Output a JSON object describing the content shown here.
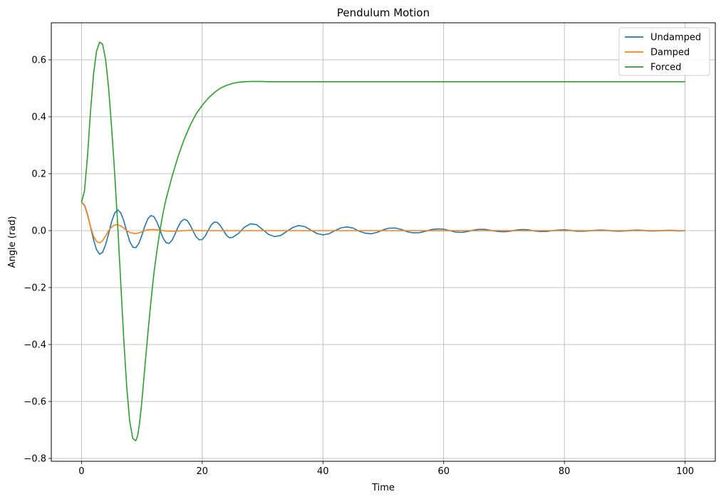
{
  "chart_data": {
    "type": "line",
    "title": "Pendulum Motion",
    "xlabel": "Time",
    "ylabel": "Angle (rad)",
    "xlim": [
      -5,
      105
    ],
    "ylim": [
      -0.81,
      0.73
    ],
    "xticks": [
      0,
      20,
      40,
      60,
      80,
      100
    ],
    "yticks": [
      -0.8,
      -0.6,
      -0.4,
      -0.2,
      0.0,
      0.2,
      0.4,
      0.6
    ],
    "xtick_labels": [
      "0",
      "20",
      "40",
      "60",
      "80",
      "100"
    ],
    "ytick_labels": [
      "−0.8",
      "−0.6",
      "−0.4",
      "−0.2",
      "0.0",
      "0.2",
      "0.4",
      "0.6"
    ],
    "grid": true,
    "legend_position": "top-right",
    "series": [
      {
        "name": "Undamped",
        "color": "#1f77b4",
        "x": [
          0,
          0.5,
          1.0,
          1.5,
          2.0,
          2.5,
          3.0,
          3.5,
          4.0,
          4.5,
          5.0,
          5.5,
          6.0,
          6.5,
          7.0,
          7.5,
          8.0,
          8.5,
          9.0,
          9.5,
          10.0,
          10.5,
          11.0,
          11.5,
          12.0,
          12.5,
          13.0,
          13.5,
          14.0,
          14.5,
          15.0,
          15.5,
          16.0,
          16.5,
          17.0,
          17.5,
          18.0,
          18.5,
          19.0,
          19.5,
          20.0,
          20.5,
          21.0,
          21.5,
          22.0,
          22.5,
          23.0,
          23.5,
          24.0,
          24.5,
          25.0,
          26.0,
          27.0,
          28.0,
          29.0,
          30.0,
          31.0,
          32.0,
          33.0,
          34.0,
          35.0,
          36.0,
          37.0,
          38.0,
          39.0,
          40.0,
          41.0,
          42.0,
          43.0,
          44.0,
          45.0,
          46.0,
          47.0,
          48.0,
          49.0,
          50.0,
          51.0,
          52.0,
          53.0,
          54.0,
          55.0,
          56.0,
          57.0,
          58.0,
          59.0,
          60.0,
          61.0,
          62.0,
          63.0,
          64.0,
          65.0,
          66.0,
          67.0,
          68.0,
          69.0,
          70.0,
          71.0,
          72.0,
          73.0,
          74.0,
          75.0,
          76.0,
          77.0,
          78.0,
          79.0,
          80.0,
          81.0,
          82.0,
          83.0,
          84.0,
          85.0,
          86.0,
          87.0,
          88.0,
          89.0,
          90.0,
          91.0,
          92.0,
          93.0,
          94.0,
          95.0,
          96.0,
          97.0,
          98.0,
          99.0,
          100.0
        ],
        "y": [
          0.1,
          0.09,
          0.058,
          0.013,
          -0.032,
          -0.067,
          -0.083,
          -0.076,
          -0.049,
          -0.01,
          0.032,
          0.062,
          0.073,
          0.063,
          0.035,
          -0.003,
          -0.038,
          -0.058,
          -0.06,
          -0.045,
          -0.017,
          0.016,
          0.042,
          0.053,
          0.049,
          0.03,
          0.003,
          -0.025,
          -0.042,
          -0.045,
          -0.034,
          -0.012,
          0.013,
          0.032,
          0.04,
          0.036,
          0.02,
          -0.002,
          -0.022,
          -0.032,
          -0.031,
          -0.019,
          0.001,
          0.02,
          0.03,
          0.029,
          0.018,
          0.001,
          -0.016,
          -0.025,
          -0.024,
          -0.01,
          0.012,
          0.024,
          0.021,
          0.004,
          -0.013,
          -0.021,
          -0.017,
          -0.003,
          0.011,
          0.018,
          0.014,
          0.002,
          -0.01,
          -0.015,
          -0.011,
          0.0,
          0.01,
          0.013,
          0.009,
          -0.002,
          -0.009,
          -0.011,
          -0.006,
          0.003,
          0.009,
          0.009,
          0.004,
          -0.004,
          -0.008,
          -0.007,
          -0.002,
          0.004,
          0.006,
          0.005,
          0.0,
          -0.005,
          -0.006,
          -0.003,
          0.002,
          0.005,
          0.004,
          0.0,
          -0.003,
          -0.004,
          -0.002,
          0.002,
          0.004,
          0.003,
          -0.001,
          -0.003,
          -0.003,
          0.0,
          0.002,
          0.003,
          0.001,
          -0.002,
          -0.002,
          -0.001,
          0.001,
          0.002,
          0.001,
          -0.001,
          -0.002,
          -0.001,
          0.001,
          0.002,
          0.001,
          -0.001,
          -0.001,
          0.0,
          0.001,
          0.001,
          -0.001,
          0.0
        ]
      },
      {
        "name": "Damped",
        "color": "#ff7f0e",
        "x": [
          0,
          0.5,
          1.0,
          1.5,
          2.0,
          2.5,
          3.0,
          3.5,
          4.0,
          4.5,
          5.0,
          5.5,
          6.0,
          6.5,
          7.0,
          7.5,
          8.0,
          8.5,
          9.0,
          9.5,
          10.0,
          10.5,
          11.0,
          11.5,
          12.0,
          12.5,
          13.0,
          13.5,
          14.0,
          15.0,
          16.0,
          17.0,
          18.0,
          20.0,
          25.0,
          30.0,
          40.0,
          50.0,
          60.0,
          70.0,
          80.0,
          90.0,
          100.0
        ],
        "y": [
          0.1,
          0.088,
          0.055,
          0.014,
          -0.02,
          -0.038,
          -0.043,
          -0.035,
          -0.018,
          0.0,
          0.013,
          0.02,
          0.021,
          0.017,
          0.009,
          0.0,
          -0.006,
          -0.009,
          -0.01,
          -0.008,
          -0.004,
          0.0,
          0.003,
          0.004,
          0.004,
          0.003,
          0.002,
          0.0,
          -0.001,
          -0.002,
          -0.001,
          0.0,
          0.001,
          0.0,
          0.0,
          0.0,
          0.0,
          0.0,
          0.0,
          0.0,
          0.0,
          0.0,
          0.0
        ]
      },
      {
        "name": "Forced",
        "color": "#2ca02c",
        "x": [
          0,
          0.5,
          1.0,
          1.5,
          2.0,
          2.5,
          3.0,
          3.5,
          4.0,
          4.5,
          5.0,
          5.5,
          6.0,
          6.5,
          7.0,
          7.5,
          8.0,
          8.5,
          9.0,
          9.3,
          9.6,
          10.0,
          10.5,
          11.0,
          11.5,
          12.0,
          12.5,
          13.0,
          13.5,
          14.0,
          15.0,
          16.0,
          17.0,
          18.0,
          19.0,
          20.0,
          21.0,
          22.0,
          23.0,
          24.0,
          25.0,
          26.0,
          27.0,
          28.0,
          29.0,
          30.0,
          31.0,
          32.0,
          34.0,
          36.0,
          40.0,
          50.0,
          60.0,
          70.0,
          80.0,
          90.0,
          100.0
        ],
        "y": [
          0.1,
          0.14,
          0.26,
          0.42,
          0.55,
          0.63,
          0.662,
          0.655,
          0.6,
          0.5,
          0.36,
          0.2,
          0.02,
          -0.18,
          -0.38,
          -0.55,
          -0.67,
          -0.73,
          -0.738,
          -0.72,
          -0.68,
          -0.6,
          -0.48,
          -0.36,
          -0.25,
          -0.15,
          -0.07,
          0.0,
          0.06,
          0.11,
          0.19,
          0.26,
          0.32,
          0.37,
          0.41,
          0.44,
          0.465,
          0.485,
          0.5,
          0.51,
          0.517,
          0.521,
          0.523,
          0.524,
          0.524,
          0.524,
          0.523,
          0.523,
          0.523,
          0.523,
          0.523,
          0.523,
          0.523,
          0.523,
          0.523,
          0.523,
          0.523
        ]
      }
    ]
  }
}
